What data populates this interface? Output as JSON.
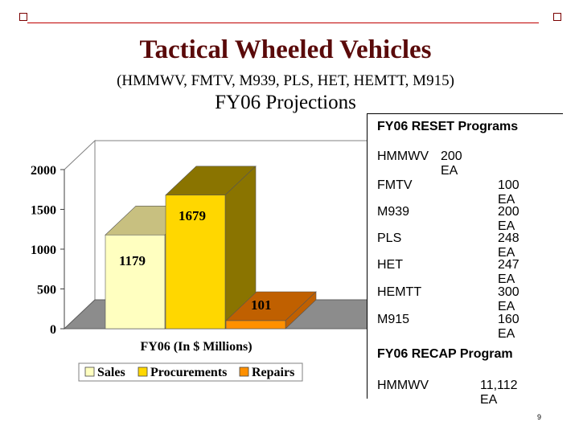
{
  "slide": {
    "title": "Tactical Wheeled Vehicles",
    "subtitle": "(HMMWV, FMTV, M939, PLS, HET, HEMTT, M915)",
    "projections": "FY06 Projections",
    "page_number": "9"
  },
  "panel": {
    "reset_heading": "FY06 RESET Programs",
    "reset_items": [
      {
        "name": "HMMWV",
        "value": "200 EA"
      },
      {
        "name": "FMTV",
        "value": "100 EA"
      },
      {
        "name": "M939",
        "value": "200 EA"
      },
      {
        "name": "PLS",
        "value": "248 EA"
      },
      {
        "name": "HET",
        "value": "247 EA"
      },
      {
        "name": "HEMTT",
        "value": "300 EA"
      },
      {
        "name": "M915",
        "value": "160 EA"
      }
    ],
    "recap_heading": "FY06 RECAP Program",
    "recap_items": [
      {
        "name": "HMMWV",
        "value": "11,112 EA"
      }
    ]
  },
  "chart_data": {
    "type": "bar",
    "xlabel": "FY06 (In $ Millions)",
    "ylim": [
      0,
      2000
    ],
    "yticks": [
      "0",
      "500",
      "1000",
      "1500",
      "2000"
    ],
    "series": [
      {
        "name": "Sales",
        "value": 1179,
        "label": "1179",
        "color": "#ffffc0",
        "side": "#c8c080"
      },
      {
        "name": "Procurements",
        "value": 1679,
        "label": "1679",
        "color": "#ffd700",
        "side": "#8a7400"
      },
      {
        "name": "Repairs",
        "value": 101,
        "label": "101",
        "color": "#ff9000",
        "side": "#c06000"
      }
    ],
    "legend": "bottom"
  }
}
